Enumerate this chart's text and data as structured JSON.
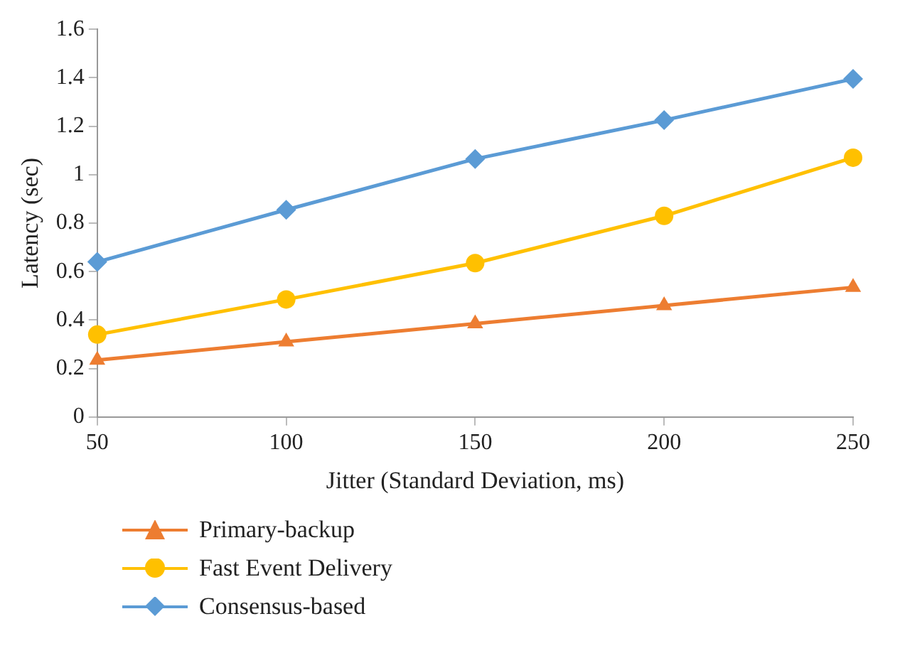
{
  "chart_data": {
    "type": "line",
    "xlabel": "Jitter (Standard Deviation, ms)",
    "ylabel": "Latency (sec)",
    "x": [
      50,
      100,
      150,
      200,
      250
    ],
    "xlim": [
      50,
      250
    ],
    "xticks": [
      50,
      100,
      150,
      200,
      250
    ],
    "ylim": [
      0,
      1.6
    ],
    "yticks": [
      0,
      0.2,
      0.4,
      0.6,
      0.8,
      1,
      1.2,
      1.4,
      1.6
    ],
    "grid": false,
    "legend": "bottom",
    "line_style": "solid",
    "series": [
      {
        "name": "Primary-backup",
        "color": "#ed7d31",
        "marker": "triangle",
        "values": [
          0.235,
          0.31,
          0.385,
          0.46,
          0.535
        ]
      },
      {
        "name": "Fast Event Delivery",
        "color": "#ffc000",
        "marker": "circle",
        "values": [
          0.34,
          0.485,
          0.635,
          0.83,
          1.07
        ]
      },
      {
        "name": "Consensus-based",
        "color": "#5b9bd5",
        "marker": "diamond",
        "values": [
          0.64,
          0.855,
          1.065,
          1.225,
          1.395
        ]
      }
    ]
  }
}
